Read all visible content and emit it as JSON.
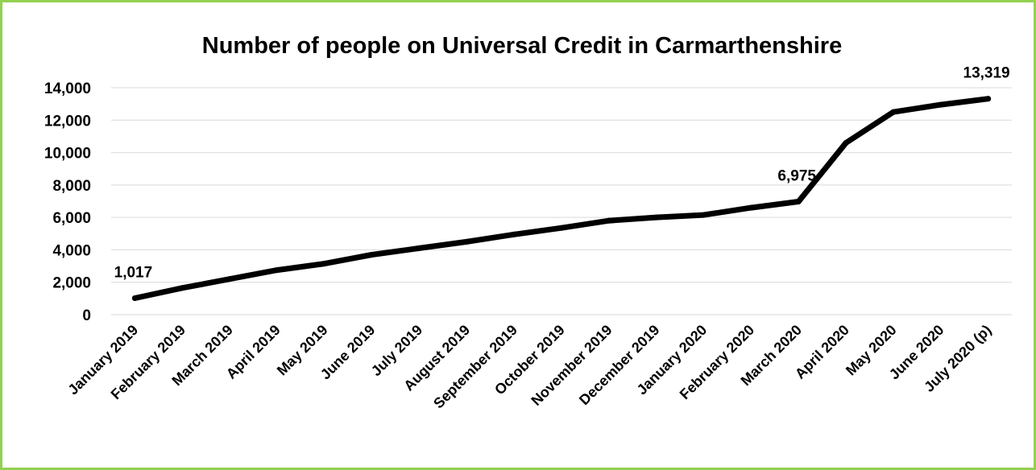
{
  "chart_data": {
    "type": "line",
    "title": "Number of people on Universal Credit in Carmarthenshire",
    "xlabel": "",
    "ylabel": "",
    "categories": [
      "January 2019",
      "February 2019",
      "March 2019",
      "April 2019",
      "May 2019",
      "June 2019",
      "July 2019",
      "August 2019",
      "September 2019",
      "October 2019",
      "November 2019",
      "December 2019",
      "January 2020",
      "February 2020",
      "March 2020",
      "April 2020",
      "May 2020",
      "June 2020",
      "July 2020 (p)"
    ],
    "series": [
      {
        "values": [
          1017,
          1650,
          2200,
          2750,
          3150,
          3700,
          4100,
          4500,
          4950,
          5350,
          5800,
          6000,
          6150,
          6600,
          6975,
          10600,
          12500,
          12950,
          13319
        ]
      }
    ],
    "data_labels": [
      {
        "index": 0,
        "text": "1,017"
      },
      {
        "index": 14,
        "text": "6,975"
      },
      {
        "index": 18,
        "text": "13,319"
      }
    ],
    "y_ticks": [
      "0",
      "2,000",
      "4,000",
      "6,000",
      "8,000",
      "10,000",
      "12,000",
      "14,000"
    ],
    "ylim": [
      0,
      14000
    ],
    "grid": true,
    "legend": "none",
    "colors": {
      "line": "#000000",
      "grid": "#d9d9d9",
      "border": "#92d050"
    }
  }
}
